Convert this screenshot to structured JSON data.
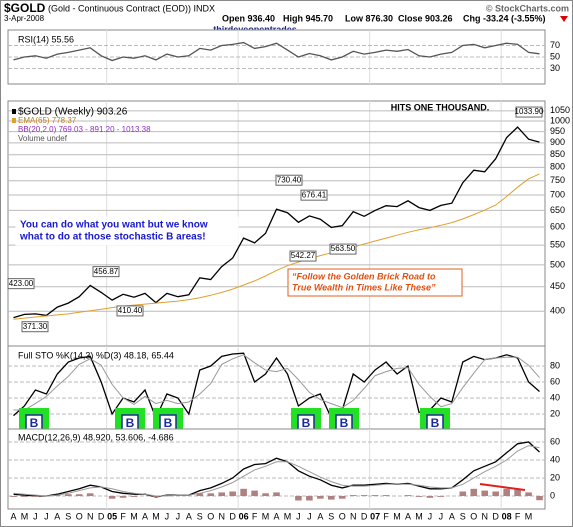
{
  "header": {
    "symbol": "$GOLD",
    "description": "(Gold - Continuous Contract (EOD)) INDX",
    "source": "© StockCharts.com",
    "date": "3-Apr-2008",
    "open": "Open 936.40",
    "high": "High 945.70",
    "low": "Low 876.30",
    "close": "Close 903.26",
    "change": "Chg -33.24 (-3.55%)",
    "watermark": "thirdeyeopentrades"
  },
  "chart_data": [
    {
      "type": "line",
      "title": "RSI(14) 55.56",
      "ylim": [
        10,
        90
      ],
      "yticks": [
        30,
        50,
        70
      ],
      "grid": true,
      "series": [
        {
          "color": "#555555",
          "values": [
            45,
            50,
            52,
            48,
            55,
            58,
            62,
            66,
            52,
            44,
            50,
            48,
            52,
            45,
            55,
            50,
            52,
            65,
            62,
            70,
            72,
            75,
            65,
            68,
            74,
            62,
            50,
            56,
            52,
            45,
            50,
            60,
            55,
            58,
            62,
            60,
            63,
            52,
            50,
            55,
            58,
            70,
            72,
            66,
            70,
            74,
            72,
            58,
            55.56
          ]
        }
      ]
    },
    {
      "type": "line",
      "log_scale": true,
      "ylim": [
        340,
        1080
      ],
      "yticks": [
        400,
        450,
        500,
        550,
        600,
        650,
        700,
        750,
        800,
        850,
        900,
        950,
        1000,
        1050
      ],
      "grid": true,
      "series": [
        {
          "name": "$GOLD (Weekly) 903.26",
          "color": "#000000",
          "values": [
            388,
            394,
            395,
            392,
            408,
            416,
            429,
            453,
            438,
            422,
            434,
            428,
            436,
            417,
            436,
            429,
            433,
            470,
            466,
            496,
            517,
            569,
            556,
            582,
            654,
            643,
            614,
            633,
            623,
            599,
            604,
            646,
            632,
            650,
            665,
            662,
            681,
            659,
            650,
            666,
            673,
            743,
            789,
            783,
            834,
            923,
            971,
            916,
            903.26
          ]
        },
        {
          "name": "EMA(65) 778.37",
          "color": "#e0a030",
          "values": [
            385,
            387,
            389,
            391,
            393,
            395,
            398,
            401,
            404,
            407,
            410,
            412,
            414,
            416,
            418,
            420,
            423,
            427,
            432,
            438,
            445,
            454,
            463,
            474,
            487,
            498,
            507,
            515,
            523,
            530,
            537,
            545,
            553,
            561,
            569,
            577,
            585,
            592,
            598,
            605,
            613,
            624,
            637,
            651,
            667,
            695,
            727,
            757,
            775
          ]
        }
      ],
      "legend_notes": [
        "BB(20,2.0) 769.03 - 891.20 - 1013.38",
        "Volume undef"
      ],
      "annotations": [
        {
          "value": 1033.9,
          "label": "1033.90"
        },
        {
          "value": 730.4,
          "label": "730.40"
        },
        {
          "value": 676.41,
          "label": "676.41"
        },
        {
          "value": 542.27,
          "label": "542.27"
        },
        {
          "value": 563.5,
          "label": "563.50"
        },
        {
          "value": 456.87,
          "label": "456.87"
        },
        {
          "value": 423,
          "label": "423.00"
        },
        {
          "value": 410.4,
          "label": "410.40"
        },
        {
          "value": 371.3,
          "label": "371.30"
        }
      ],
      "callouts": {
        "peak": "HITS ONE THOUSAND.",
        "advice": [
          "You can do what you want but we know",
          "what to do at those stochastic B areas!"
        ],
        "road": [
          "“Follow the Golden Brick Road to",
          "True Wealth in Times Like These”"
        ]
      }
    },
    {
      "type": "line",
      "title": "Full STO %K(14,3) %D(3) 48.18, 65.44",
      "ylim": [
        0,
        100
      ],
      "yticks": [
        20,
        40,
        60,
        80
      ],
      "grid": true,
      "series": [
        {
          "color": "#000000",
          "values": [
            18,
            30,
            50,
            45,
            70,
            85,
            90,
            92,
            60,
            20,
            40,
            35,
            50,
            15,
            45,
            40,
            20,
            75,
            80,
            92,
            95,
            96,
            60,
            70,
            90,
            70,
            30,
            40,
            45,
            15,
            25,
            70,
            60,
            75,
            85,
            70,
            80,
            22,
            25,
            40,
            35,
            85,
            92,
            88,
            90,
            94,
            90,
            60,
            48.18
          ]
        },
        {
          "color": "#999999",
          "values": [
            25,
            25,
            33,
            42,
            55,
            67,
            82,
            89,
            81,
            57,
            40,
            32,
            42,
            33,
            37,
            33,
            35,
            45,
            58,
            82,
            89,
            94,
            84,
            75,
            73,
            77,
            63,
            47,
            38,
            33,
            28,
            37,
            52,
            68,
            73,
            77,
            78,
            57,
            42,
            29,
            33,
            53,
            71,
            88,
            90,
            91,
            91,
            81,
            65.44
          ]
        }
      ],
      "markers": [
        "B",
        "B",
        "B",
        "B",
        "B",
        "B"
      ]
    },
    {
      "type": "line",
      "title": "MACD(12,26,9) 48.920, 53.606, -4.686",
      "ylim": [
        -10,
        70
      ],
      "yticks": [
        0,
        20,
        40,
        60
      ],
      "grid": true,
      "categories": [
        "A",
        "M",
        "J",
        "J",
        "A",
        "S",
        "O",
        "N",
        "D",
        "05",
        "F",
        "M",
        "A",
        "M",
        "J",
        "J",
        "A",
        "S",
        "O",
        "N",
        "D",
        "06",
        "F",
        "M",
        "A",
        "M",
        "J",
        "J",
        "A",
        "S",
        "O",
        "N",
        "D",
        "07",
        "F",
        "M",
        "A",
        "M",
        "J",
        "J",
        "A",
        "S",
        "O",
        "N",
        "D",
        "08",
        "F",
        "M",
        null
      ],
      "series": [
        {
          "color": "#000000",
          "values": [
            2,
            1,
            0,
            0,
            2,
            5,
            8,
            12,
            10,
            5,
            3,
            2,
            2,
            -1,
            1,
            1,
            1,
            6,
            9,
            14,
            20,
            30,
            35,
            36,
            42,
            38,
            28,
            22,
            18,
            12,
            9,
            12,
            12,
            13,
            14,
            13,
            14,
            11,
            8,
            8,
            9,
            18,
            28,
            33,
            38,
            48,
            58,
            60,
            48.92
          ]
        },
        {
          "color": "#999999",
          "values": [
            3,
            2,
            1,
            0,
            1,
            3,
            6,
            9,
            10,
            8,
            5,
            3,
            2,
            0,
            0,
            1,
            1,
            3,
            6,
            10,
            15,
            22,
            29,
            33,
            38,
            38,
            33,
            27,
            21,
            16,
            12,
            11,
            11,
            12,
            13,
            13,
            13,
            12,
            10,
            9,
            9,
            13,
            20,
            27,
            33,
            40,
            50,
            56,
            53.606
          ]
        },
        {
          "style": "bar",
          "color": "#b08080",
          "values": [
            -1,
            -1,
            -1,
            0,
            1,
            2,
            2,
            3,
            0,
            -3,
            -2,
            -1,
            0,
            -1,
            1,
            0,
            0,
            3,
            3,
            4,
            5,
            8,
            6,
            3,
            4,
            0,
            -5,
            -5,
            -3,
            -4,
            -3,
            1,
            1,
            1,
            1,
            0,
            1,
            -1,
            -2,
            -1,
            0,
            5,
            8,
            6,
            5,
            8,
            8,
            4,
            -4.686
          ]
        }
      ]
    }
  ]
}
